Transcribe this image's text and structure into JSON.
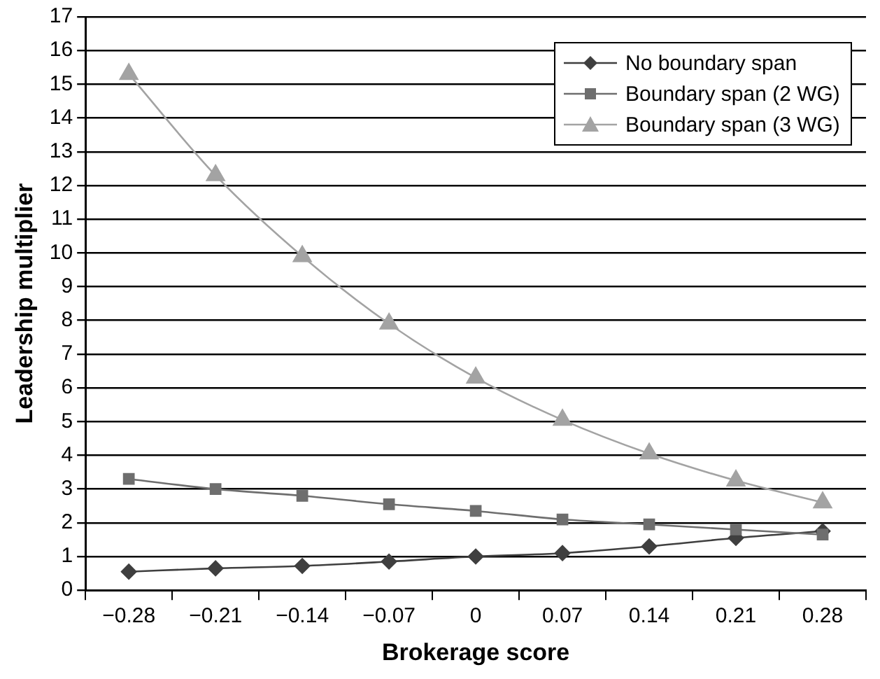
{
  "chart_data": {
    "type": "line",
    "xlabel": "Brokerage score",
    "ylabel": "Leadership multiplier",
    "categories": [
      "−0.28",
      "−0.21",
      "−0.14",
      "−0.07",
      "0",
      "0.07",
      "0.14",
      "0.21",
      "0.28"
    ],
    "series": [
      {
        "name": "No boundary span",
        "color": "#3f3f3f",
        "marker": "diamond",
        "values": [
          0.55,
          0.65,
          0.72,
          0.85,
          1.0,
          1.1,
          1.3,
          1.55,
          1.75
        ]
      },
      {
        "name": "Boundary span (2 WG)",
        "color": "#6e6e6e",
        "marker": "square",
        "values": [
          3.3,
          3.0,
          2.8,
          2.55,
          2.35,
          2.1,
          1.95,
          1.8,
          1.65
        ]
      },
      {
        "name": "Boundary span (3 WG)",
        "color": "#a3a3a3",
        "marker": "triangle",
        "values": [
          15.3,
          12.3,
          9.9,
          7.9,
          6.3,
          5.05,
          4.05,
          3.25,
          2.6
        ]
      }
    ],
    "ylim": [
      0,
      17
    ],
    "yticks": [
      0,
      1,
      2,
      3,
      4,
      5,
      6,
      7,
      8,
      9,
      10,
      11,
      12,
      13,
      14,
      15,
      16,
      17
    ],
    "grid": "y",
    "legend": "top right",
    "line_style": "solid"
  }
}
